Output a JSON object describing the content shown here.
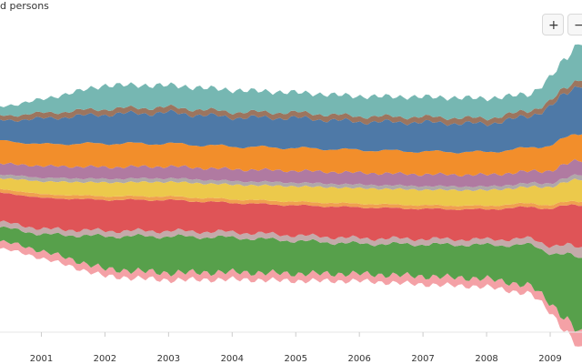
{
  "chart_data": {
    "type": "area",
    "subtype": "streamgraph",
    "title": "d persons",
    "xlabel": "",
    "ylabel": "",
    "x_tick_labels": [
      "2001",
      "2002",
      "2003",
      "2004",
      "2005",
      "2006",
      "2007",
      "2008",
      "2009"
    ],
    "x_range": [
      2000.35,
      2009.5
    ],
    "grid": false,
    "legend": "none",
    "series": [
      {
        "name": "pink",
        "color": "#f4a1a6",
        "values": [
          8,
          8,
          8,
          8,
          8,
          8,
          8,
          9,
          9,
          9,
          10,
          18
        ]
      },
      {
        "name": "green",
        "color": "#57a04b",
        "values": [
          15,
          18,
          36,
          40,
          38,
          36,
          33,
          35,
          37,
          45,
          55,
          85
        ]
      },
      {
        "name": "light-gray",
        "color": "#c4aaaa",
        "values": [
          6,
          6,
          6,
          6,
          6,
          6,
          6,
          6,
          6,
          7,
          8,
          12
        ]
      },
      {
        "name": "red",
        "color": "#df5457",
        "values": [
          32,
          34,
          34,
          34,
          32,
          33,
          34,
          33,
          33,
          35,
          40,
          48
        ]
      },
      {
        "name": "orange-thin",
        "color": "#f0a050",
        "values": [
          4,
          4,
          4,
          4,
          4,
          4,
          4,
          4,
          4,
          4,
          4,
          4
        ]
      },
      {
        "name": "yellow",
        "color": "#ecc94b",
        "values": [
          12,
          14,
          15,
          16,
          16,
          17,
          17,
          17,
          17,
          18,
          20,
          24
        ]
      },
      {
        "name": "gray",
        "color": "#b0a8a8",
        "values": [
          4,
          4,
          4,
          4,
          4,
          4,
          4,
          4,
          4,
          4,
          4,
          5
        ]
      },
      {
        "name": "purple",
        "color": "#b07aa1",
        "values": [
          12,
          13,
          13,
          13,
          13,
          13,
          13,
          13,
          13,
          13,
          14,
          16
        ]
      },
      {
        "name": "orange",
        "color": "#f28e2b",
        "values": [
          25,
          24,
          26,
          25,
          25,
          25,
          25,
          25,
          25,
          26,
          28,
          30
        ]
      },
      {
        "name": "blue",
        "color": "#4e79a7",
        "values": [
          22,
          28,
          32,
          34,
          32,
          33,
          31,
          32,
          31,
          35,
          42,
          55
        ]
      },
      {
        "name": "brown",
        "color": "#9c755f",
        "values": [
          5,
          6,
          6,
          6,
          6,
          6,
          6,
          6,
          6,
          6,
          6,
          7
        ]
      },
      {
        "name": "teal",
        "color": "#76b7b2",
        "values": [
          10,
          15,
          26,
          24,
          24,
          22,
          22,
          22,
          22,
          18,
          26,
          40
        ]
      }
    ],
    "x_points": [
      2000.35,
      2001,
      2002,
      2003,
      2004,
      2005,
      2006,
      2007,
      2008,
      2008.7,
      2009,
      2009.5
    ]
  },
  "controls": {
    "zoom_in_label": "+",
    "zoom_out_label": "−"
  }
}
